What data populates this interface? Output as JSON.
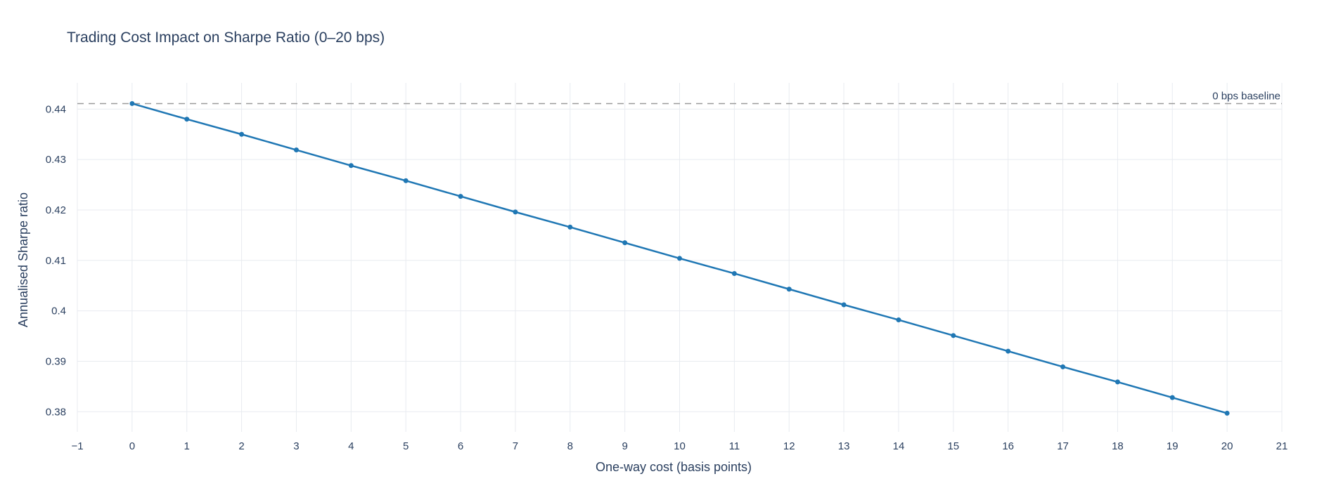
{
  "chart_data": {
    "type": "line",
    "title": "Trading Cost Impact on Sharpe Ratio (0–20 bps)",
    "xlabel": "One-way cost (basis points)",
    "ylabel": "Annualised Sharpe ratio",
    "xlim": [
      -1,
      21
    ],
    "ylim": [
      0.376,
      0.4452
    ],
    "x_ticks": [
      -1,
      0,
      1,
      2,
      3,
      4,
      5,
      6,
      7,
      8,
      9,
      10,
      11,
      12,
      13,
      14,
      15,
      16,
      17,
      18,
      19,
      20,
      21
    ],
    "x_tick_labels": [
      "−1",
      "0",
      "1",
      "2",
      "3",
      "4",
      "5",
      "6",
      "7",
      "8",
      "9",
      "10",
      "11",
      "12",
      "13",
      "14",
      "15",
      "16",
      "17",
      "18",
      "19",
      "20",
      "21"
    ],
    "y_ticks": [
      0.38,
      0.39,
      0.4,
      0.41,
      0.42,
      0.43,
      0.44
    ],
    "y_tick_labels": [
      "0.38",
      "0.39",
      "0.4",
      "0.41",
      "0.42",
      "0.43",
      "0.44"
    ],
    "grid": true,
    "series": [
      {
        "color": "#1f77b4",
        "x": [
          0,
          1,
          2,
          3,
          4,
          5,
          6,
          7,
          8,
          9,
          10,
          11,
          12,
          13,
          14,
          15,
          16,
          17,
          18,
          19,
          20
        ],
        "y": [
          0.4411,
          0.438,
          0.435,
          0.4319,
          0.4288,
          0.4258,
          0.4227,
          0.4196,
          0.4166,
          0.4135,
          0.4104,
          0.4074,
          0.4043,
          0.4012,
          0.3982,
          0.3951,
          0.392,
          0.3889,
          0.3859,
          0.3828,
          0.3797
        ]
      }
    ],
    "reference_line": {
      "y": 0.4411,
      "label": "0 bps baseline",
      "color": "#9a9a9a",
      "style": "dashed"
    }
  }
}
